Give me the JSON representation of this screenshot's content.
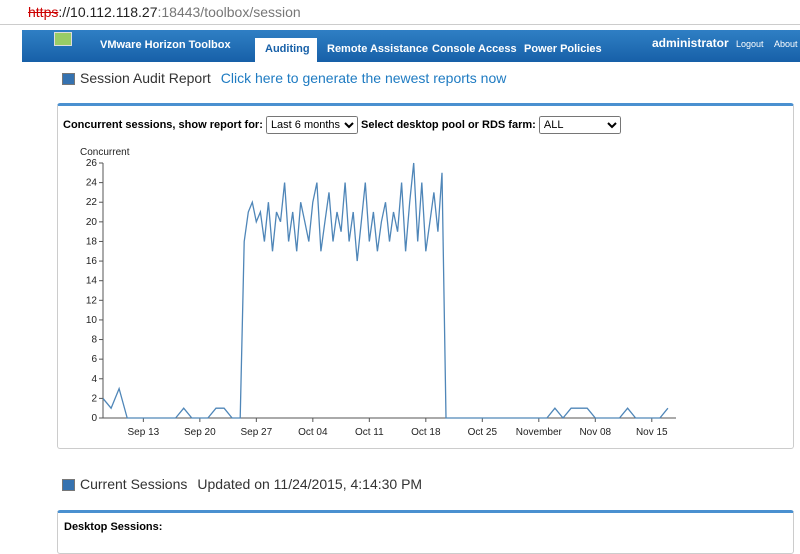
{
  "browser": {
    "url_scheme": "https",
    "url_rest": "://10.112.118.27",
    "url_port": ":18443/toolbox/session"
  },
  "nav": {
    "brand": "VMware Horizon Toolbox",
    "tabs": [
      "Auditing",
      "Remote Assistance",
      "Console Access",
      "Power Policies"
    ],
    "user": "administrator",
    "links": [
      "Logout",
      "About"
    ]
  },
  "report": {
    "title": "Session Audit Report",
    "link": "Click here to generate the newest reports now",
    "filter_label": "Concurrent sessions, show report for:",
    "period": "Last 6 months",
    "pool_label": "Select desktop pool or RDS farm:",
    "pool": "ALL"
  },
  "chart_data": {
    "type": "line",
    "y_label": "Concurrent",
    "color": "#4f86b8",
    "x": [
      251,
      252,
      253,
      254,
      255,
      256,
      257,
      258,
      259,
      260,
      261,
      262,
      263,
      264,
      265,
      266,
      267,
      268,
      268.5,
      269,
      269.5,
      270,
      270.5,
      271,
      271.5,
      272,
      272.5,
      273,
      273.5,
      274,
      274.5,
      275,
      275.5,
      276,
      276.5,
      277,
      277.5,
      278,
      278.5,
      279,
      279.5,
      280,
      280.5,
      281,
      281.5,
      282,
      282.5,
      283,
      283.5,
      284,
      284.5,
      285,
      285.5,
      286,
      286.5,
      287,
      287.5,
      288,
      288.5,
      289,
      289.5,
      290,
      290.5,
      291,
      291.5,
      292,
      292.5,
      293,
      293.5,
      294,
      295,
      296,
      297,
      298,
      299,
      300,
      301,
      302,
      303,
      304,
      305,
      306,
      307,
      308,
      309,
      310,
      311,
      312,
      313,
      314,
      315,
      316,
      317,
      318,
      319,
      320,
      321
    ],
    "values": [
      2,
      1,
      3,
      0,
      0,
      0,
      0,
      0,
      0,
      0,
      1,
      0,
      0,
      0,
      1,
      1,
      0,
      0,
      18,
      21,
      22,
      20,
      21,
      18,
      22,
      17,
      21,
      20,
      24,
      18,
      21,
      17,
      22,
      20,
      18,
      22,
      24,
      17,
      20,
      23,
      18,
      21,
      19,
      24,
      18,
      21,
      16,
      20,
      24,
      18,
      21,
      17,
      20,
      22,
      18,
      21,
      19,
      24,
      17,
      22,
      26,
      18,
      24,
      17,
      20,
      23,
      19,
      25,
      0,
      0,
      0,
      0,
      0,
      0,
      0,
      0,
      0,
      0,
      0,
      0,
      0,
      0,
      1,
      0,
      1,
      1,
      1,
      0,
      0,
      0,
      0,
      1,
      0,
      0,
      0,
      0,
      1
    ],
    "xlim": [
      251,
      322
    ],
    "ylim": [
      0,
      26
    ],
    "xticks": [
      {
        "value": 256,
        "label": "Sep 13"
      },
      {
        "value": 263,
        "label": "Sep 20"
      },
      {
        "value": 270,
        "label": "Sep 27"
      },
      {
        "value": 277,
        "label": "Oct 04"
      },
      {
        "value": 284,
        "label": "Oct 11"
      },
      {
        "value": 291,
        "label": "Oct 18"
      },
      {
        "value": 298,
        "label": "Oct 25"
      },
      {
        "value": 305,
        "label": "November"
      },
      {
        "value": 312,
        "label": "Nov 08"
      },
      {
        "value": 319,
        "label": "Nov 15"
      }
    ],
    "yticks": [
      0,
      2,
      4,
      6,
      8,
      10,
      12,
      14,
      16,
      18,
      20,
      22,
      24,
      26
    ]
  },
  "sessions": {
    "title": "Current Sessions",
    "updated": "Updated on 11/24/2015, 4:14:30 PM",
    "panel": "Desktop Sessions:"
  }
}
